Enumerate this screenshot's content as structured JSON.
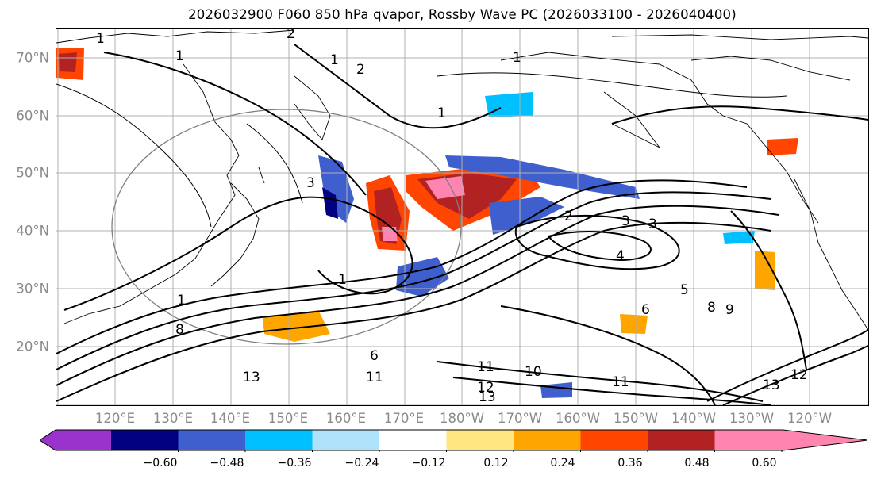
{
  "title": "2026032900 F060 850 hPa qvapor, Rossby Wave PC (2026033100 - 2026040400)",
  "latitude_labels": [
    "70°N",
    "60°N",
    "50°N",
    "40°N",
    "30°N",
    "20°N"
  ],
  "longitude_labels": [
    "120°E",
    "130°E",
    "140°E",
    "150°E",
    "160°E",
    "170°E",
    "180°W",
    "170°W",
    "160°W",
    "150°W",
    "140°W",
    "130°W",
    "120°W"
  ],
  "colorbar": {
    "tick_labels": [
      "−0.60",
      "−0.48",
      "−0.36",
      "−0.24",
      "−0.12",
      "0.12",
      "0.24",
      "0.36",
      "0.48",
      "0.60"
    ],
    "colors": [
      "#9933cc",
      "#000080",
      "#3f5fcf",
      "#00bfff",
      "#aee2fb",
      "#ffffff",
      "#ffe680",
      "#ffa500",
      "#ff4500",
      "#b22222",
      "#ff85b0"
    ]
  },
  "contour_labels": [
    "1",
    "1",
    "1",
    "1",
    "1",
    "1",
    "1",
    "2",
    "2",
    "2",
    "3",
    "3",
    "3",
    "4",
    "5",
    "6",
    "6",
    "8",
    "8",
    "9",
    "10",
    "11",
    "11",
    "11",
    "12",
    "12",
    "13",
    "13",
    "13"
  ]
}
